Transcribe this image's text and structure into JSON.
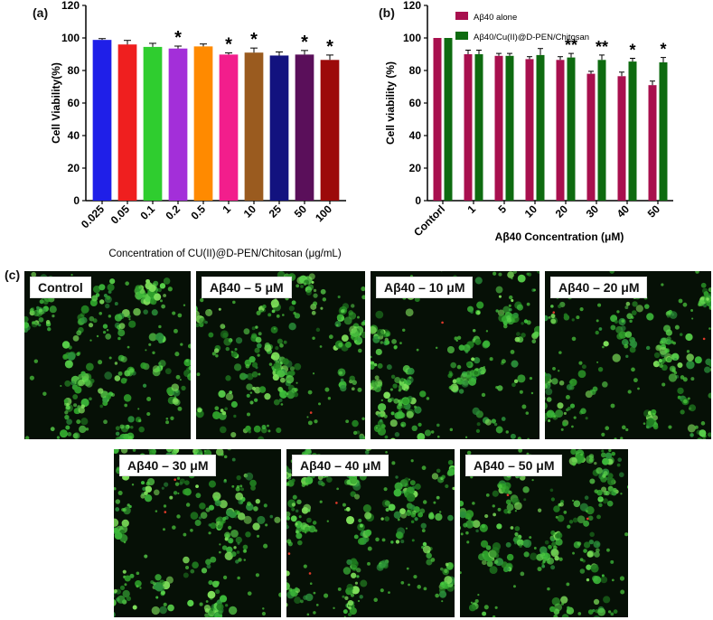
{
  "panel_labels": {
    "a": "(a)",
    "b": "(b)",
    "c": "(c)"
  },
  "chart_data": [
    {
      "id": "a",
      "type": "bar",
      "ylabel": "Cell Viability(%)",
      "xlabel": "Concentration of CU(II)@D-PEN/Chitosan (μg/mL)",
      "ylim": [
        0,
        120
      ],
      "yticks": [
        0,
        20,
        40,
        60,
        80,
        100,
        120
      ],
      "categories": [
        "0.025",
        "0.05",
        "0.1",
        "0.2",
        "0.5",
        "1",
        "10",
        "25",
        "50",
        "100"
      ],
      "values": [
        98.8,
        96.0,
        94.5,
        93.5,
        94.8,
        89.8,
        91.0,
        89.2,
        89.8,
        86.5
      ],
      "errors": [
        0.8,
        2.5,
        2.2,
        1.5,
        1.5,
        1.0,
        2.8,
        2.2,
        2.5,
        3.0
      ],
      "colors": [
        "#1f1fe8",
        "#ef1f1f",
        "#2fcd2f",
        "#a32fd9",
        "#ff8a00",
        "#f21e8c",
        "#9a5b1f",
        "#12127f",
        "#5a0f5a",
        "#9c0a0a"
      ],
      "significance": [
        "",
        "",
        "",
        "*",
        "",
        "*",
        "*",
        "",
        "*",
        "*"
      ]
    },
    {
      "id": "b",
      "type": "bar",
      "ylabel": "Cell viability (%)",
      "xlabel": "Aβ40 Concentration (μM)",
      "ylim": [
        0,
        120
      ],
      "yticks": [
        0,
        20,
        40,
        60,
        80,
        100,
        120
      ],
      "categories": [
        "Contorl",
        "1",
        "5",
        "10",
        "20",
        "30",
        "40",
        "50"
      ],
      "legend_position": "top",
      "series": [
        {
          "name": "Aβ40 alone",
          "color": "#a8104e",
          "values": [
            100,
            90.0,
            89.0,
            87.0,
            86.5,
            78.0,
            76.5,
            71.0
          ],
          "errors": [
            0,
            2.5,
            1.5,
            1.5,
            2.0,
            1.5,
            2.5,
            2.5
          ]
        },
        {
          "name": "Aβ40/Cu(II)@D-PEN/Chitosan",
          "color": "#0e6b10",
          "values": [
            100,
            90.0,
            89.0,
            89.5,
            88.0,
            86.5,
            85.5,
            85.0
          ],
          "errors": [
            0,
            2.5,
            1.5,
            4.0,
            2.5,
            3.0,
            2.0,
            3.0
          ]
        }
      ],
      "significance": [
        "",
        "",
        "",
        "",
        "**",
        "**",
        "*",
        "*"
      ]
    }
  ],
  "micrographs": [
    {
      "label": "Control"
    },
    {
      "label": "Aβ40 – 5 μM"
    },
    {
      "label": "Aβ40 – 10 μM"
    },
    {
      "label": "Aβ40 – 20 μM"
    },
    {
      "label": "Aβ40 – 30 μM"
    },
    {
      "label": "Aβ40 – 40 μM"
    },
    {
      "label": "Aβ40 – 50 μM"
    }
  ]
}
